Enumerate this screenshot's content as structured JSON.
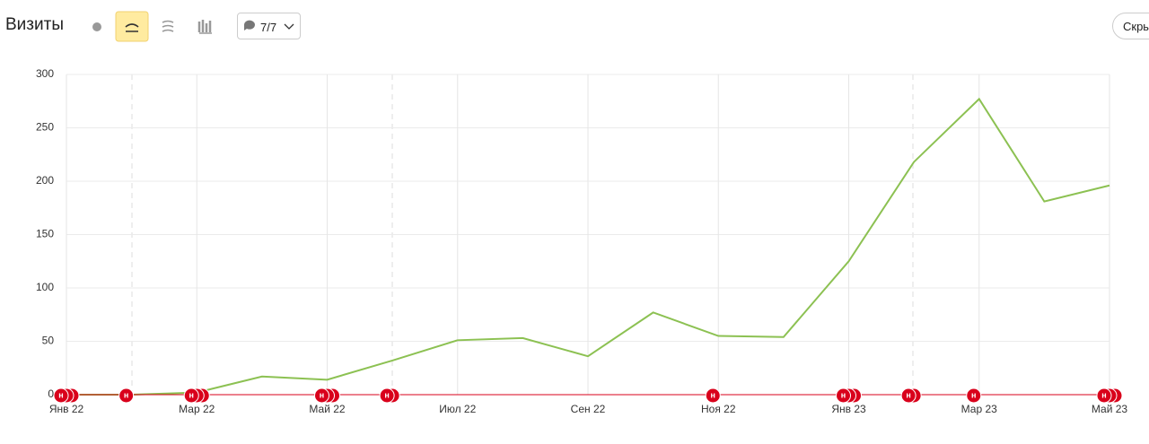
{
  "header": {
    "title": "Визиты",
    "annotations_button": "7/7",
    "hide_button": "Скрыть"
  },
  "chart_data": {
    "type": "line",
    "categories": [
      "Янв 22",
      null,
      "Мар 22",
      null,
      "Май 22",
      null,
      "Июл 22",
      null,
      "Сен 22",
      null,
      "Ноя 22",
      null,
      "Янв 23",
      null,
      "Мар 23",
      null,
      "Май 23"
    ],
    "series": [
      {
        "name": "Визиты",
        "color": "#8cc152",
        "values": [
          0,
          0,
          2,
          17,
          14,
          32,
          51,
          53,
          36,
          77,
          55,
          54,
          125,
          218,
          277,
          181,
          196
        ]
      }
    ],
    "ylim": [
      0,
      300
    ],
    "yticks": [
      0,
      50,
      100,
      150,
      200,
      250,
      300
    ],
    "grid": true,
    "annotations": [
      {
        "at": 0,
        "label": "н",
        "count": 3
      },
      {
        "at": 1,
        "label": "н",
        "count": 1
      },
      {
        "at": 2,
        "label": "н",
        "count": 3
      },
      {
        "at": 4,
        "label": "н",
        "count": 3
      },
      {
        "at": 5,
        "label": "н",
        "count": 2
      },
      {
        "at": 10,
        "label": "н",
        "count": 1
      },
      {
        "at": 12,
        "label": "н",
        "count": 3
      },
      {
        "at": 13,
        "label": "н",
        "count": 2
      },
      {
        "at": 14,
        "label": "н",
        "count": 1
      },
      {
        "at": 16,
        "label": "н",
        "count": 3
      }
    ],
    "annotation_color": "#d9001b"
  }
}
